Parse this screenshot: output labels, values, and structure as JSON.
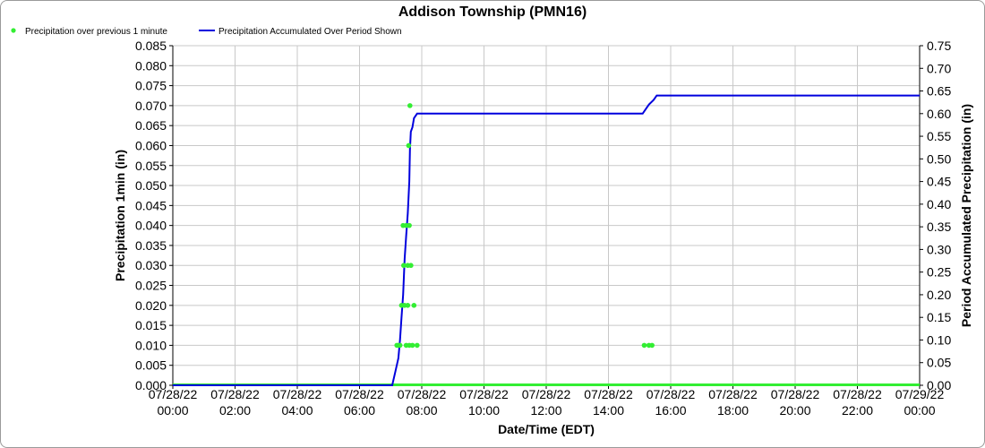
{
  "chart_data": {
    "type": "line",
    "title": "Addison Township (PMN16)",
    "xlabel": "Date/Time (EDT)",
    "ylabel": "Precipitation 1min (in)",
    "y2label": "Period Accumulated Precipitation (in)",
    "ylim": [
      0,
      0.085
    ],
    "y2lim": [
      0,
      0.75
    ],
    "xlim_hours": [
      0,
      24
    ],
    "x_ticks": [
      {
        "date": "07/28/22",
        "time": "00:00"
      },
      {
        "date": "07/28/22",
        "time": "02:00"
      },
      {
        "date": "07/28/22",
        "time": "04:00"
      },
      {
        "date": "07/28/22",
        "time": "06:00"
      },
      {
        "date": "07/28/22",
        "time": "08:00"
      },
      {
        "date": "07/28/22",
        "time": "10:00"
      },
      {
        "date": "07/28/22",
        "time": "12:00"
      },
      {
        "date": "07/28/22",
        "time": "14:00"
      },
      {
        "date": "07/28/22",
        "time": "16:00"
      },
      {
        "date": "07/28/22",
        "time": "18:00"
      },
      {
        "date": "07/28/22",
        "time": "20:00"
      },
      {
        "date": "07/28/22",
        "time": "22:00"
      },
      {
        "date": "07/29/22",
        "time": "00:00"
      }
    ],
    "y_ticks": [
      "0.000",
      "0.005",
      "0.010",
      "0.015",
      "0.020",
      "0.025",
      "0.030",
      "0.035",
      "0.040",
      "0.045",
      "0.050",
      "0.055",
      "0.060",
      "0.065",
      "0.070",
      "0.075",
      "0.080",
      "0.085"
    ],
    "y2_ticks": [
      "0.00",
      "0.05",
      "0.10",
      "0.15",
      "0.20",
      "0.25",
      "0.30",
      "0.35",
      "0.40",
      "0.45",
      "0.50",
      "0.55",
      "0.60",
      "0.65",
      "0.70",
      "0.75"
    ],
    "grid": true,
    "legend_placement": "top-left",
    "series": [
      {
        "name": "Precipitation over previous 1 minute",
        "kind": "scatter",
        "axis": "left",
        "color": "#33ee33",
        "points": [
          {
            "x": 7.2,
            "y": 0.01
          },
          {
            "x": 7.25,
            "y": 0.01
          },
          {
            "x": 7.3,
            "y": 0.01
          },
          {
            "x": 7.35,
            "y": 0.02
          },
          {
            "x": 7.4,
            "y": 0.04
          },
          {
            "x": 7.42,
            "y": 0.03
          },
          {
            "x": 7.45,
            "y": 0.02
          },
          {
            "x": 7.5,
            "y": 0.04
          },
          {
            "x": 7.5,
            "y": 0.01
          },
          {
            "x": 7.55,
            "y": 0.03
          },
          {
            "x": 7.55,
            "y": 0.02
          },
          {
            "x": 7.58,
            "y": 0.06
          },
          {
            "x": 7.6,
            "y": 0.04
          },
          {
            "x": 7.6,
            "y": 0.01
          },
          {
            "x": 7.62,
            "y": 0.07
          },
          {
            "x": 7.65,
            "y": 0.03
          },
          {
            "x": 7.7,
            "y": 0.01
          },
          {
            "x": 7.75,
            "y": 0.02
          },
          {
            "x": 7.85,
            "y": 0.01
          },
          {
            "x": 15.15,
            "y": 0.01
          },
          {
            "x": 15.3,
            "y": 0.01
          },
          {
            "x": 15.4,
            "y": 0.01
          }
        ]
      },
      {
        "name": "Precipitation Accumulated Over Period Shown",
        "kind": "line",
        "axis": "right",
        "color": "#0000dd",
        "points": [
          {
            "x": 0,
            "y": 0
          },
          {
            "x": 7.05,
            "y": 0
          },
          {
            "x": 7.15,
            "y": 0.03
          },
          {
            "x": 7.25,
            "y": 0.06
          },
          {
            "x": 7.3,
            "y": 0.1
          },
          {
            "x": 7.35,
            "y": 0.15
          },
          {
            "x": 7.4,
            "y": 0.2
          },
          {
            "x": 7.45,
            "y": 0.28
          },
          {
            "x": 7.5,
            "y": 0.33
          },
          {
            "x": 7.55,
            "y": 0.38
          },
          {
            "x": 7.6,
            "y": 0.45
          },
          {
            "x": 7.62,
            "y": 0.52
          },
          {
            "x": 7.65,
            "y": 0.56
          },
          {
            "x": 7.7,
            "y": 0.57
          },
          {
            "x": 7.75,
            "y": 0.59
          },
          {
            "x": 7.85,
            "y": 0.6
          },
          {
            "x": 7.95,
            "y": 0.6
          },
          {
            "x": 15.1,
            "y": 0.6
          },
          {
            "x": 15.2,
            "y": 0.61
          },
          {
            "x": 15.3,
            "y": 0.62
          },
          {
            "x": 15.45,
            "y": 0.63
          },
          {
            "x": 15.55,
            "y": 0.64
          },
          {
            "x": 24,
            "y": 0.64
          }
        ]
      }
    ]
  }
}
